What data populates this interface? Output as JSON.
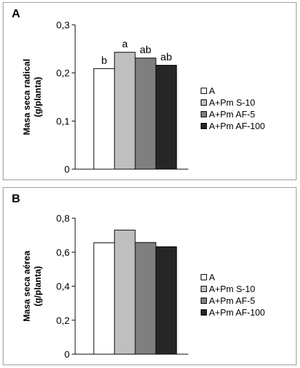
{
  "chart_data": [
    {
      "type": "bar",
      "panel_label": "A",
      "ylabel_line1": "Masa seca radical",
      "ylabel_line2": "(g/planta)",
      "ylim": [
        0,
        0.3
      ],
      "yticks": [
        0,
        0.1,
        0.2,
        0.3
      ],
      "ytick_labels": [
        "0",
        "0,1",
        "0,2",
        "0,3"
      ],
      "categories": [
        "A",
        "A+Pm S-10",
        "A+Pm AF-5",
        "A+Pm AF-100"
      ],
      "values": [
        0.209,
        0.243,
        0.231,
        0.216
      ],
      "annotations": [
        "b",
        "a",
        "ab",
        "ab"
      ],
      "colors": [
        "#ffffff",
        "#bfbfbf",
        "#7f7f7f",
        "#262626"
      ],
      "legend_position": "right"
    },
    {
      "type": "bar",
      "panel_label": "B",
      "ylabel_line1": "Masa seca aérea",
      "ylabel_line2": "(g/planta)",
      "ylim": [
        0,
        0.8
      ],
      "yticks": [
        0,
        0.2,
        0.4,
        0.6,
        0.8
      ],
      "ytick_labels": [
        "0",
        "0,2",
        "0,4",
        "0,6",
        "0,8"
      ],
      "categories": [
        "A",
        "A+Pm S-10",
        "A+Pm AF-5",
        "A+Pm AF-100"
      ],
      "values": [
        0.655,
        0.73,
        0.657,
        0.632
      ],
      "annotations": [],
      "colors": [
        "#ffffff",
        "#bfbfbf",
        "#7f7f7f",
        "#262626"
      ],
      "legend_position": "right"
    }
  ]
}
